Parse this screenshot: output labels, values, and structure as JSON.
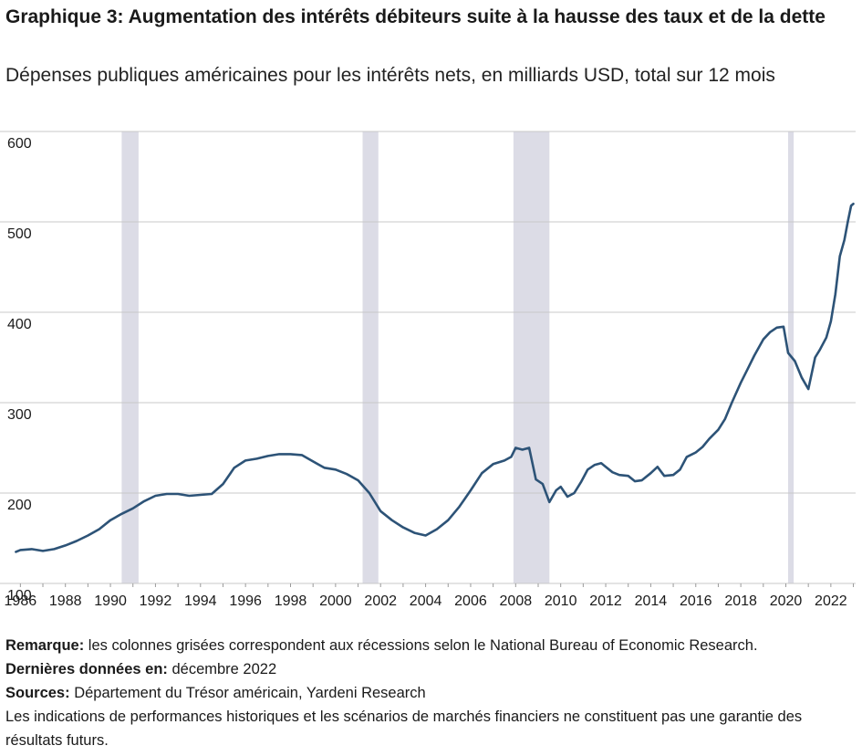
{
  "title": "Graphique 3: Augmentation des intérêts débiteurs suite à la hausse des taux et de la dette",
  "subtitle": "Dépenses publiques américaines pour les intérêts nets, en milliards USD, total sur 12 mois",
  "notes": {
    "remark_label": "Remarque:",
    "remark_text": " les colonnes grisées correspondent aux récessions selon le National Bureau of Economic Research.",
    "latest_label": "Dernières données en:",
    "latest_text": " décembre 2022",
    "sources_label": "Sources:",
    "sources_text": " Département du Trésor américain, Yardeni Research",
    "disclaimer": "Les indications de performances historiques et les scénarios de marchés financiers ne constituent pas une garantie des résultats futurs."
  },
  "colors": {
    "line": "#2d5377",
    "recession": "#dcdce6",
    "grid": "#c8c8c8"
  },
  "chart_data": {
    "type": "line",
    "title": "",
    "xlabel": "",
    "ylabel": "",
    "xlim": [
      1985.5,
      2023.1
    ],
    "ylim": [
      100,
      600
    ],
    "y_ticks": [
      100,
      200,
      300,
      400,
      500,
      600
    ],
    "x_ticks": [
      1986,
      1988,
      1990,
      1992,
      1994,
      1996,
      1998,
      2000,
      2002,
      2004,
      2006,
      2008,
      2010,
      2012,
      2014,
      2016,
      2018,
      2020,
      2022
    ],
    "grid": "horizontal",
    "recessions": [
      [
        1990.5,
        1991.25
      ],
      [
        2001.2,
        2001.9
      ],
      [
        2007.9,
        2009.5
      ],
      [
        2020.1,
        2020.35
      ]
    ],
    "series": [
      {
        "x": [
          1985.8,
          1986.0,
          1986.5,
          1987.0,
          1987.5,
          1988.0,
          1988.5,
          1989.0,
          1989.5,
          1990.0,
          1990.5,
          1991.0,
          1991.5,
          1992.0,
          1992.5,
          1993.0,
          1993.5,
          1994.0,
          1994.5,
          1995.0,
          1995.5,
          1996.0,
          1996.5,
          1997.0,
          1997.5,
          1998.0,
          1998.5,
          1999.0,
          1999.5,
          2000.0,
          2000.5,
          2001.0,
          2001.5,
          2002.0,
          2002.5,
          2003.0,
          2003.5,
          2004.0,
          2004.5,
          2005.0,
          2005.5,
          2006.0,
          2006.5,
          2007.0,
          2007.5,
          2007.8,
          2008.0,
          2008.3,
          2008.6,
          2008.9,
          2009.2,
          2009.5,
          2009.8,
          2010.0,
          2010.3,
          2010.6,
          2010.9,
          2011.2,
          2011.5,
          2011.8,
          2012.0,
          2012.3,
          2012.6,
          2013.0,
          2013.3,
          2013.6,
          2014.0,
          2014.3,
          2014.6,
          2015.0,
          2015.3,
          2015.6,
          2016.0,
          2016.3,
          2016.6,
          2017.0,
          2017.3,
          2017.6,
          2018.0,
          2018.3,
          2018.6,
          2019.0,
          2019.3,
          2019.6,
          2019.9,
          2020.1,
          2020.4,
          2020.7,
          2021.0,
          2021.3,
          2021.5,
          2021.8,
          2022.0,
          2022.2,
          2022.4,
          2022.6,
          2022.75,
          2022.9,
          2023.0
        ],
        "values": [
          135,
          137,
          138,
          136,
          138,
          142,
          147,
          153,
          160,
          170,
          177,
          183,
          191,
          197,
          199,
          199,
          197,
          198,
          199,
          210,
          228,
          236,
          238,
          241,
          243,
          243,
          242,
          235,
          228,
          226,
          221,
          214,
          200,
          180,
          170,
          162,
          156,
          153,
          160,
          170,
          185,
          203,
          222,
          232,
          236,
          240,
          250,
          248,
          250,
          215,
          210,
          190,
          203,
          207,
          196,
          200,
          212,
          226,
          231,
          233,
          229,
          223,
          220,
          219,
          213,
          214,
          222,
          229,
          219,
          220,
          226,
          240,
          245,
          251,
          260,
          270,
          282,
          300,
          322,
          337,
          352,
          370,
          378,
          383,
          384,
          355,
          346,
          328,
          315,
          350,
          358,
          372,
          390,
          420,
          462,
          480,
          500,
          518,
          520
        ]
      }
    ]
  }
}
